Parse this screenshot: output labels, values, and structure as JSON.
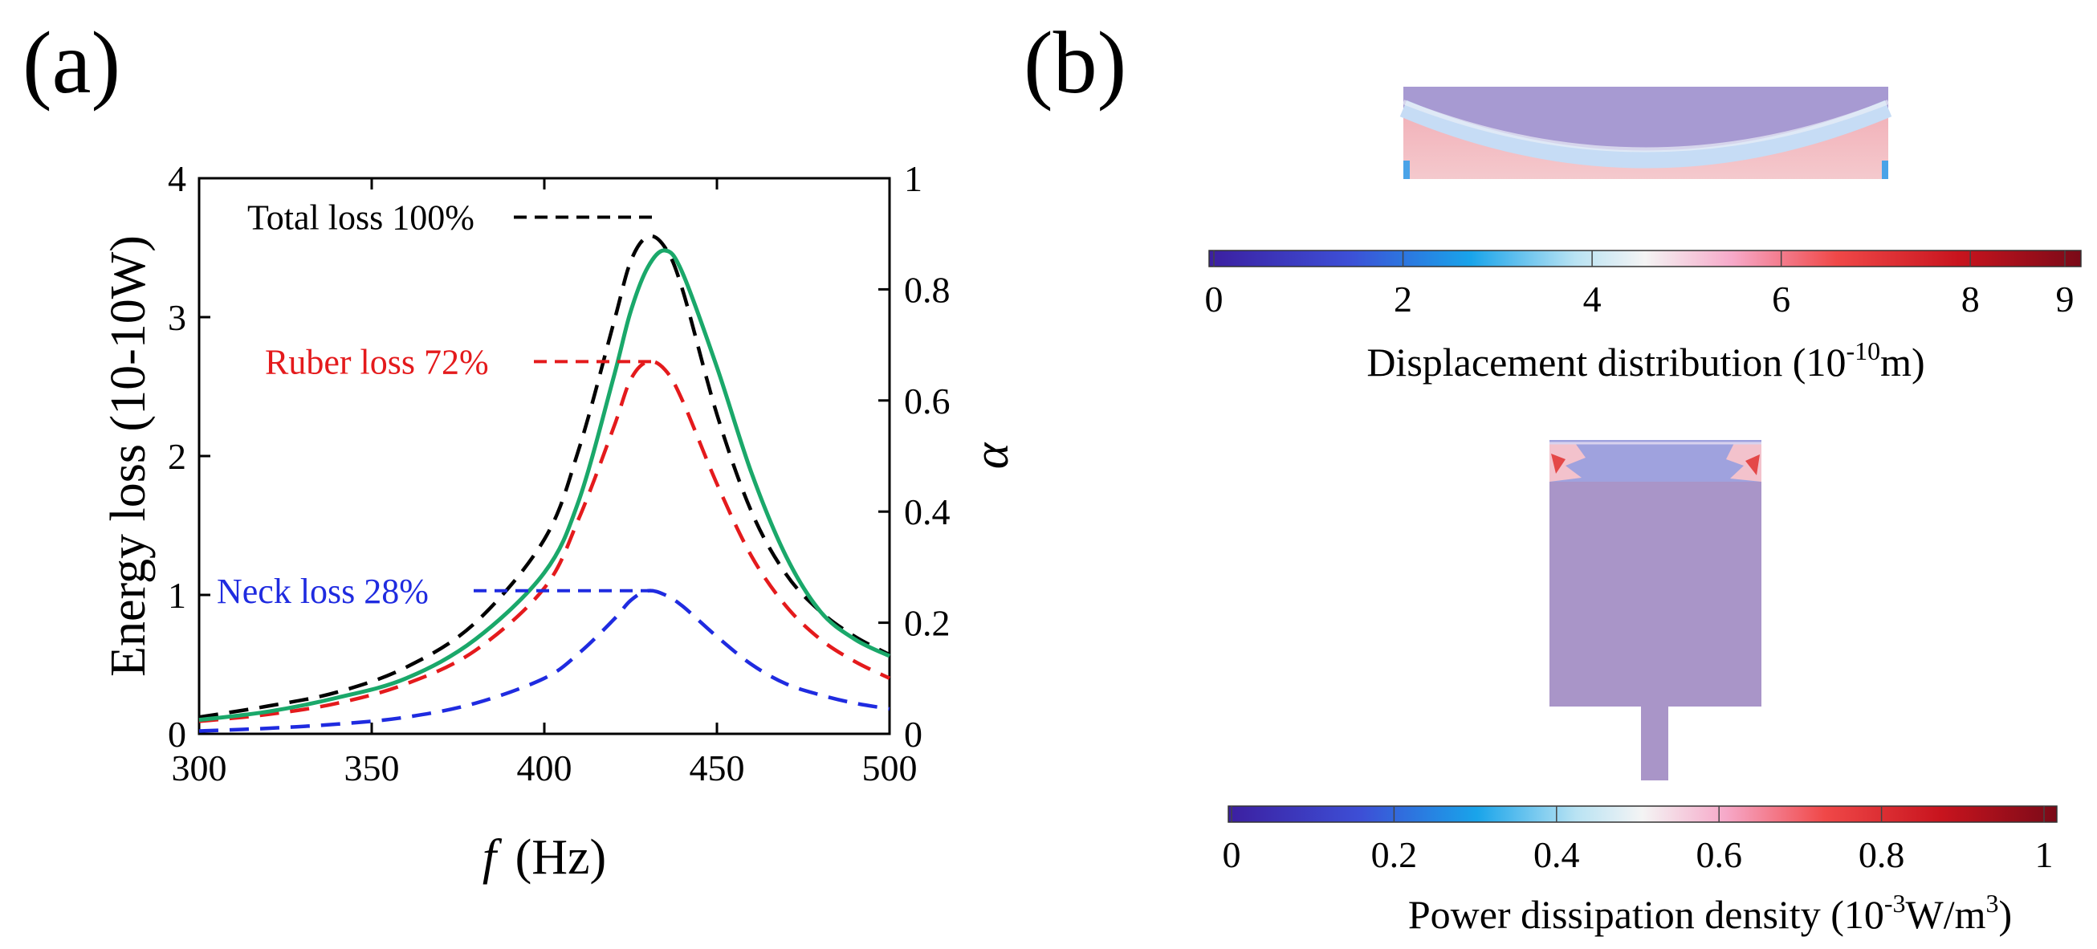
{
  "panels": {
    "a": "(a)",
    "b": "(b)"
  },
  "chart_data": [
    {
      "type": "line",
      "xlabel_italic": "f",
      "xlabel_unit": "(Hz)",
      "ylabel": "Energy loss (10-10W)",
      "y2label": "α",
      "xlim": [
        300,
        500
      ],
      "ylim": [
        0,
        4
      ],
      "y2lim": [
        0,
        1
      ],
      "x_ticks": [
        "300",
        "350",
        "400",
        "450",
        "500"
      ],
      "y_ticks": [
        "0",
        "1",
        "2",
        "3",
        "4"
      ],
      "y2_ticks": [
        "0",
        "0.2",
        "0.4",
        "0.6",
        "0.8",
        "1"
      ],
      "grid": false,
      "x": [
        300,
        320,
        340,
        360,
        380,
        400,
        410,
        420,
        425,
        430,
        435,
        440,
        450,
        460,
        470,
        480,
        490,
        500
      ],
      "series": [
        {
          "axis": "left",
          "color": "#000000",
          "dash": true,
          "values": [
            0.12,
            0.2,
            0.3,
            0.48,
            0.8,
            1.4,
            2.05,
            2.95,
            3.4,
            3.58,
            3.5,
            3.2,
            2.3,
            1.6,
            1.15,
            0.88,
            0.7,
            0.57
          ]
        },
        {
          "axis": "left",
          "color": "#e41a1c",
          "dash": true,
          "values": [
            0.09,
            0.14,
            0.22,
            0.36,
            0.6,
            1.05,
            1.55,
            2.2,
            2.55,
            2.68,
            2.62,
            2.4,
            1.8,
            1.28,
            0.92,
            0.68,
            0.52,
            0.4
          ]
        },
        {
          "axis": "left",
          "color": "#1f2be0",
          "dash": true,
          "values": [
            0.02,
            0.04,
            0.07,
            0.12,
            0.22,
            0.4,
            0.58,
            0.82,
            0.96,
            1.03,
            1.0,
            0.92,
            0.7,
            0.5,
            0.36,
            0.28,
            0.22,
            0.18
          ]
        },
        {
          "axis": "right",
          "color": "#1aa86a",
          "dash": false,
          "values": [
            0.025,
            0.04,
            0.065,
            0.1,
            0.17,
            0.29,
            0.42,
            0.64,
            0.76,
            0.84,
            0.87,
            0.83,
            0.66,
            0.47,
            0.32,
            0.22,
            0.17,
            0.14
          ]
        }
      ],
      "annotations": [
        {
          "text": "Total loss 100%",
          "color": "#000000",
          "level": 3.72
        },
        {
          "text": "Ruber loss 72%",
          "color": "#e41a1c",
          "level": 2.68
        },
        {
          "text": "Neck loss 28%",
          "color": "#1f2be0",
          "level": 1.03
        }
      ]
    },
    {
      "type": "heatmap",
      "colorbar_ticks": [
        "0",
        "2",
        "4",
        "6",
        "8",
        "9"
      ],
      "colorbar_title": "Displacement distribution (10-10m)",
      "colorbar_title_parts": {
        "base": "Displacement distribution (10",
        "sup": "-10",
        "tail": "m)"
      }
    },
    {
      "type": "heatmap",
      "colorbar_ticks": [
        "0",
        "0.2",
        "0.4",
        "0.6",
        "0.8",
        "1"
      ],
      "colorbar_title": "Power dissipation density (10-3W/m3)",
      "colorbar_title_parts": {
        "base": "Power dissipation density (10",
        "sup": "-3",
        "mid": "W/m",
        "sup2": "3",
        "tail": ")"
      }
    }
  ],
  "colors": {
    "cmap_low": "#3c1fa0",
    "cmap_mid": "#f4f4f4",
    "cmap_high": "#7a0a18",
    "field_bg": "#a995c8"
  }
}
